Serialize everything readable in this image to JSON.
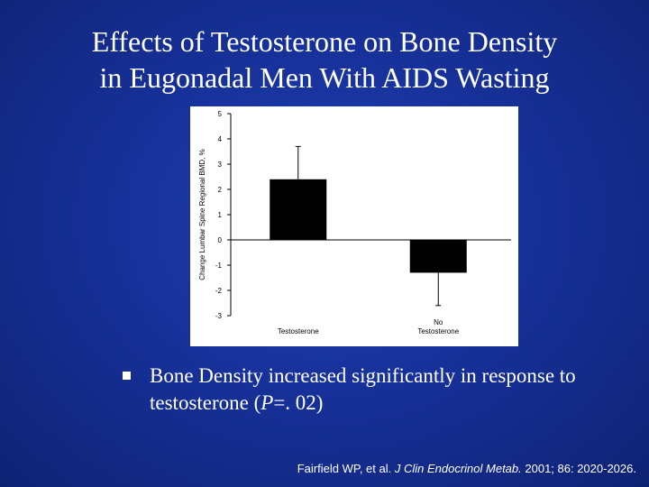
{
  "slide": {
    "title_line1": "Effects of Testosterone on Bone Density",
    "title_line2": "in  Eugonadal Men With AIDS Wasting"
  },
  "bullet": {
    "text_part1": "Bone Density increased significantly in response to testosterone (",
    "text_italic": "P",
    "text_part2": "=. 02)"
  },
  "citation": {
    "authors": "Fairfield WP, et al. ",
    "journal": "J Clin Endocrinol Metab.",
    "details": " 2001; 86: 2020-2026."
  },
  "colors": {
    "bar_fill": "#000000",
    "panel_background": "#ffffff",
    "slide_background": "#17319a"
  },
  "chart_data": {
    "type": "bar",
    "categories": [
      "Testosterone",
      "No Testosterone"
    ],
    "category_lines": [
      [
        "Testosterone"
      ],
      [
        "No",
        "Testosterone"
      ]
    ],
    "values": [
      2.4,
      -1.3
    ],
    "error": [
      1.3,
      1.3
    ],
    "ylabel": "Change Lumbar Spine Regional BMD, %",
    "ylim": [
      -3,
      5
    ],
    "yticks": [
      -3,
      -2,
      -1,
      0,
      1,
      2,
      3,
      4,
      5
    ],
    "xlabel": "",
    "grid": false,
    "legend": "none"
  }
}
